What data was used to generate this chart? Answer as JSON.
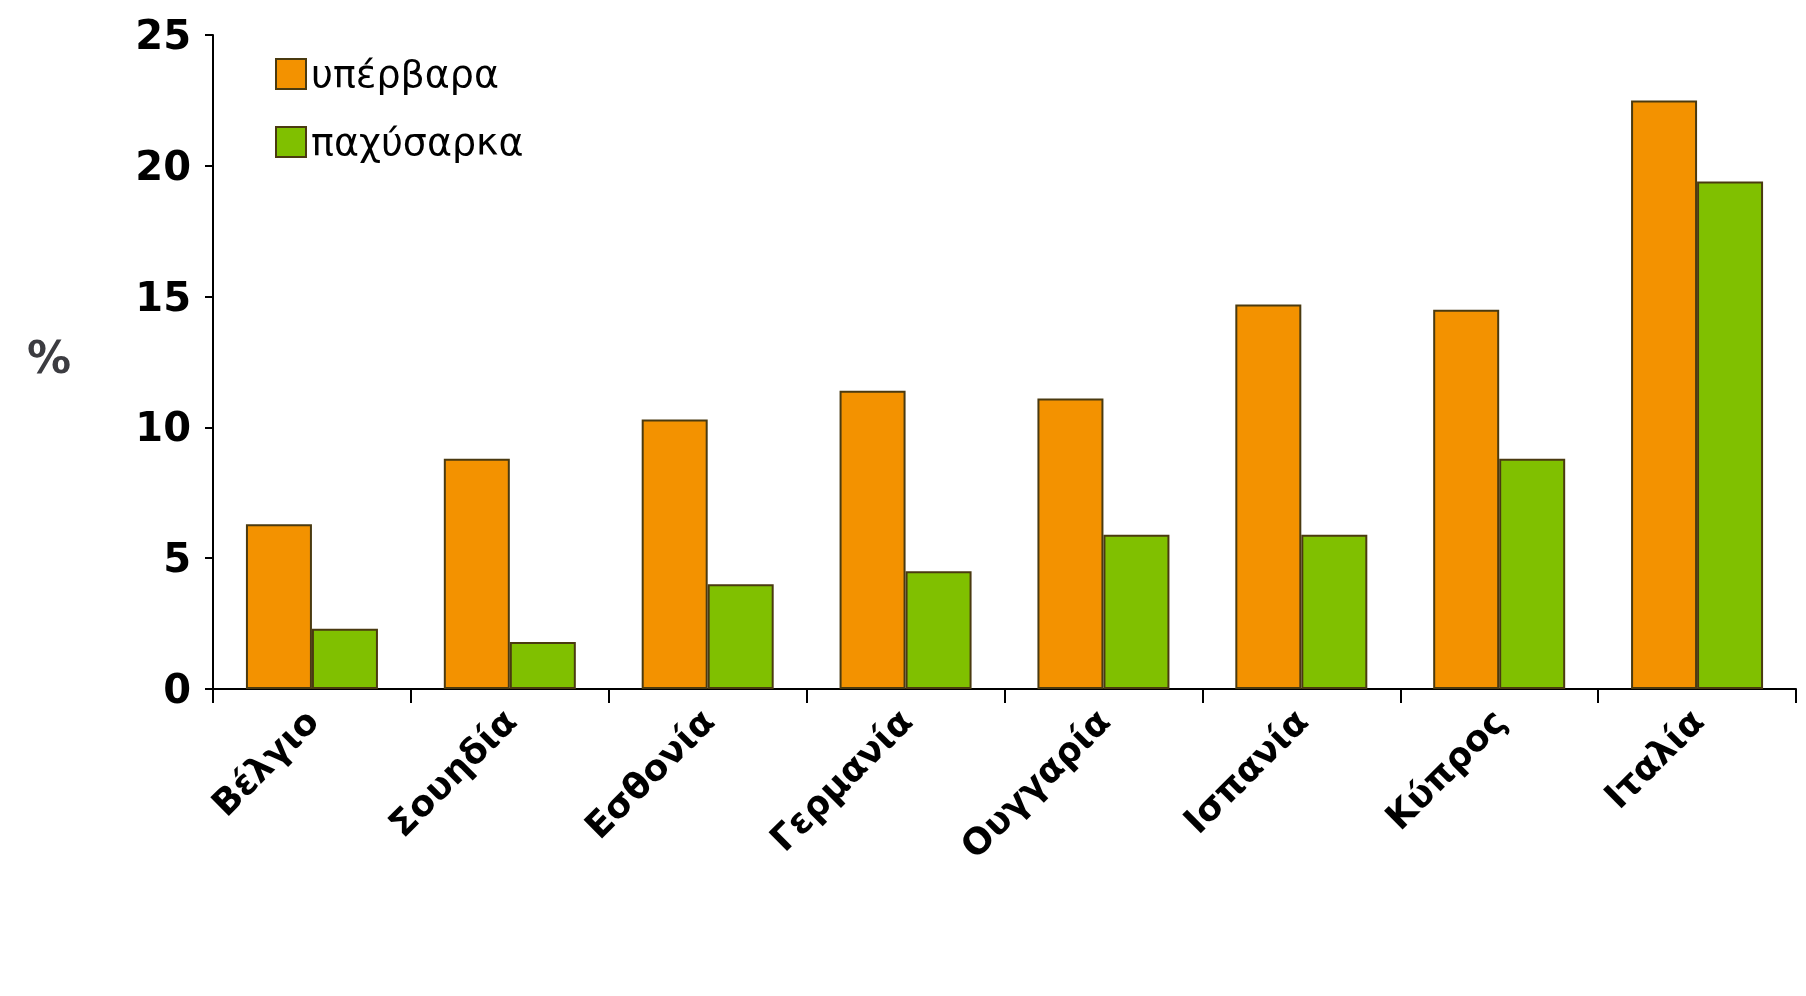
{
  "chart_data": {
    "type": "bar",
    "ylabel": "%",
    "categories": [
      "Βέλγιο",
      "Σουηδία",
      "Εσθονία",
      "Γερμανία",
      "Ουγγαρία",
      "Ισπανία",
      "Κύπρος",
      "Ιταλία"
    ],
    "series": [
      {
        "name": "υπέρβαρα",
        "color": "#f39200",
        "values": [
          6.3,
          8.8,
          10.3,
          11.4,
          11.1,
          14.7,
          14.5,
          22.5
        ]
      },
      {
        "name": "παχύσαρκα",
        "color": "#80c000",
        "values": [
          2.3,
          1.8,
          4.0,
          4.5,
          5.9,
          5.9,
          8.8,
          19.4
        ]
      }
    ],
    "ylim": [
      0,
      25
    ],
    "yticks": [
      0,
      5,
      10,
      15,
      20,
      25
    ],
    "grid": false,
    "legend": "top left"
  }
}
